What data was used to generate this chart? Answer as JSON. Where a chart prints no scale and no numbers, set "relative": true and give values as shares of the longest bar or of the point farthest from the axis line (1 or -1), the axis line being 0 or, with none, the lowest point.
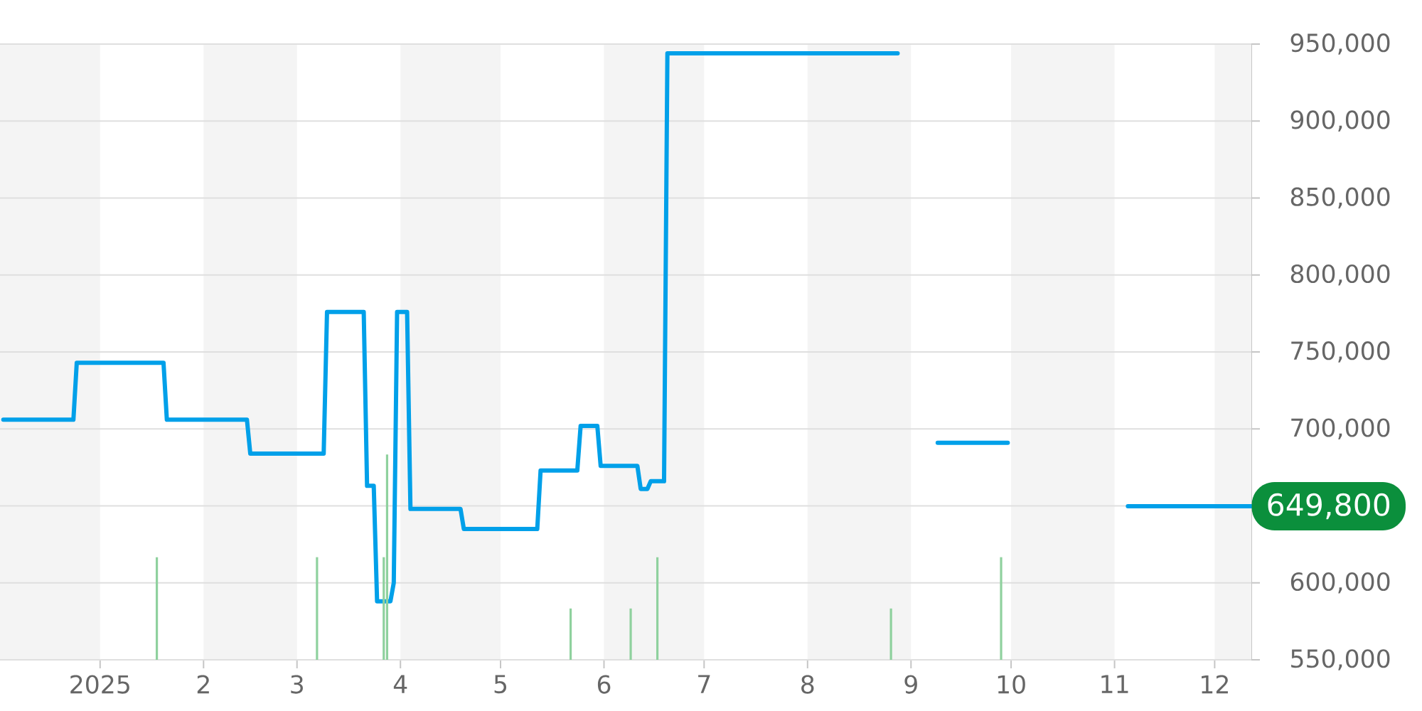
{
  "chart_data": [
    {
      "type": "line",
      "color": "#00a0e9",
      "x": [
        "2024-12-03",
        "2024-12-24",
        "2024-12-25",
        "2025-01-20",
        "2025-01-21",
        "2025-02-14",
        "2025-02-15",
        "2025-03-09",
        "2025-03-10",
        "2025-03-21",
        "2025-03-22",
        "2025-03-24",
        "2025-03-25",
        "2025-03-29",
        "2025-03-30",
        "2025-03-31",
        "2025-04-03",
        "2025-04-04",
        "2025-04-19",
        "2025-04-20",
        "2025-05-12",
        "2025-05-13",
        "2025-05-24",
        "2025-05-25",
        "2025-05-30",
        "2025-05-31",
        "2025-06-11",
        "2025-06-12",
        "2025-06-14",
        "2025-06-15",
        "2025-06-19",
        "2025-06-20",
        "2025-08-28",
        "2025-09-08",
        "2025-09-09",
        "2025-09-30",
        "2025-10-15",
        "2025-11-05",
        "2025-12-12"
      ],
      "values": [
        706000,
        706000,
        743000,
        743000,
        706000,
        706000,
        684000,
        684000,
        776000,
        776000,
        663000,
        663000,
        588000,
        588000,
        600000,
        776000,
        776000,
        648000,
        648000,
        635000,
        635000,
        673000,
        673000,
        702000,
        702000,
        676000,
        676000,
        661000,
        661000,
        666000,
        666000,
        944000,
        944000,
        null,
        691000,
        691000,
        null,
        649800,
        649800
      ],
      "xlim": [
        "2024-12-02",
        "2025-12-12"
      ],
      "xticks": [
        {
          "value": "2025-01-01",
          "label": "2025"
        },
        {
          "value": "2025-02-01",
          "label": "2"
        },
        {
          "value": "2025-03-01",
          "label": "3"
        },
        {
          "value": "2025-04-01",
          "label": "4"
        },
        {
          "value": "2025-05-01",
          "label": "5"
        },
        {
          "value": "2025-06-01",
          "label": "6"
        },
        {
          "value": "2025-07-01",
          "label": "7"
        },
        {
          "value": "2025-08-01",
          "label": "8"
        },
        {
          "value": "2025-09-01",
          "label": "9"
        },
        {
          "value": "2025-10-01",
          "label": "10"
        },
        {
          "value": "2025-11-01",
          "label": "11"
        },
        {
          "value": "2025-12-01",
          "label": "12"
        }
      ],
      "ylim": [
        550000,
        950000
      ],
      "yticks": [
        {
          "value": 550000,
          "label": "550,000"
        },
        {
          "value": 600000,
          "label": "600,000"
        },
        {
          "value": 650000,
          "label": null
        },
        {
          "value": 700000,
          "label": "700,000"
        },
        {
          "value": 750000,
          "label": "750,000"
        },
        {
          "value": 800000,
          "label": "800,000"
        },
        {
          "value": 850000,
          "label": "850,000"
        },
        {
          "value": 900000,
          "label": "900,000"
        },
        {
          "value": 950000,
          "label": "950,000"
        }
      ],
      "grid": "y",
      "bands": [
        {
          "axis": "x",
          "from": "2024-12-02",
          "to": "2025-01-01",
          "color": "#f4f4f4"
        },
        {
          "axis": "x",
          "from": "2025-02-01",
          "to": "2025-03-01",
          "color": "#f4f4f4"
        },
        {
          "axis": "x",
          "from": "2025-04-01",
          "to": "2025-05-01",
          "color": "#f4f4f4"
        },
        {
          "axis": "x",
          "from": "2025-06-01",
          "to": "2025-07-01",
          "color": "#f4f4f4"
        },
        {
          "axis": "x",
          "from": "2025-08-01",
          "to": "2025-09-01",
          "color": "#f4f4f4"
        },
        {
          "axis": "x",
          "from": "2025-10-01",
          "to": "2025-11-01",
          "color": "#f4f4f4"
        },
        {
          "axis": "x",
          "from": "2025-12-01",
          "to": "2025-12-12",
          "color": "#f4f4f4"
        }
      ],
      "annotations": [
        {
          "text": "649,800",
          "x": "2025-12-12",
          "y": 649800
        }
      ]
    },
    {
      "type": "bar",
      "relative": true,
      "color": "#8fd19e",
      "x": [
        "2025-01-18",
        "2025-03-07",
        "2025-03-27",
        "2025-03-28",
        "2025-05-22",
        "2025-06-09",
        "2025-06-17",
        "2025-08-26",
        "2025-09-28"
      ],
      "values": [
        0.5,
        0.5,
        0.5,
        1,
        0.25,
        0.25,
        0.5,
        0.25,
        0.5
      ],
      "xlim": [
        "2024-12-02",
        "2025-12-12"
      ]
    }
  ]
}
